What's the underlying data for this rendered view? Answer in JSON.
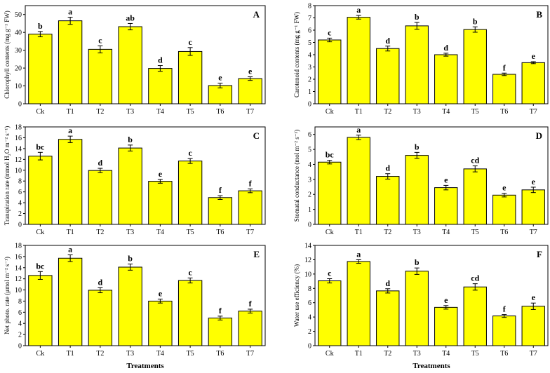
{
  "bar_color": "#FFFF00",
  "chart_data": [
    {
      "type": "bar",
      "panel_letter": "A",
      "categories": [
        "Ck",
        "T1",
        "T2",
        "T3",
        "T4",
        "T5",
        "T6",
        "T7"
      ],
      "values": [
        39,
        46.5,
        30.5,
        43.2,
        19.8,
        29.3,
        10.2,
        14.1
      ],
      "errors": [
        1.5,
        2.0,
        2.0,
        1.8,
        1.6,
        2.2,
        1.3,
        1.0
      ],
      "significance": [
        "b",
        "a",
        "c",
        "ab",
        "d",
        "c",
        "e",
        "e"
      ],
      "ylabel": "Chlorophyll contents (mg g⁻¹ FW)",
      "xlabel": "",
      "ylim": [
        0,
        55
      ],
      "yticks": [
        0,
        10,
        20,
        30,
        40,
        50
      ]
    },
    {
      "type": "bar",
      "panel_letter": "B",
      "categories": [
        "Ck",
        "T1",
        "T2",
        "T3",
        "T4",
        "T5",
        "T6",
        "T7"
      ],
      "values": [
        5.2,
        7.05,
        4.5,
        6.35,
        4.0,
        6.05,
        2.4,
        3.35
      ],
      "errors": [
        0.15,
        0.15,
        0.2,
        0.28,
        0.12,
        0.22,
        0.1,
        0.08
      ],
      "significance": [
        "c",
        "a",
        "d",
        "b",
        "d",
        "b",
        "f",
        "e"
      ],
      "ylabel": "Carotenoid contents (mg g⁻¹ FW)",
      "xlabel": "",
      "ylim": [
        0,
        8
      ],
      "yticks": [
        0,
        1,
        2,
        3,
        4,
        5,
        6,
        7,
        8
      ]
    },
    {
      "type": "bar",
      "panel_letter": "C",
      "categories": [
        "Ck",
        "T1",
        "T2",
        "T3",
        "T4",
        "T5",
        "T6",
        "T7"
      ],
      "values": [
        12.6,
        15.7,
        9.95,
        14.1,
        7.95,
        11.7,
        4.95,
        6.2
      ],
      "errors": [
        0.7,
        0.6,
        0.4,
        0.55,
        0.35,
        0.45,
        0.35,
        0.35
      ],
      "significance": [
        "bc",
        "a",
        "d",
        "b",
        "e",
        "c",
        "f",
        "f"
      ],
      "ylabel": "Transpiration rate (mmol H₂O m⁻² s⁻¹)",
      "xlabel": "",
      "ylim": [
        0,
        18
      ],
      "yticks": [
        0,
        2,
        4,
        6,
        8,
        10,
        12,
        14,
        16,
        18
      ]
    },
    {
      "type": "bar",
      "panel_letter": "D",
      "categories": [
        "Ck",
        "T1",
        "T2",
        "T3",
        "T4",
        "T5",
        "T6",
        "T7"
      ],
      "values": [
        4.15,
        5.8,
        3.2,
        4.6,
        2.45,
        3.7,
        1.95,
        2.3
      ],
      "errors": [
        0.12,
        0.15,
        0.18,
        0.2,
        0.15,
        0.2,
        0.12,
        0.18
      ],
      "significance": [
        "bc",
        "a",
        "d",
        "b",
        "e",
        "cd",
        "e",
        "e"
      ],
      "ylabel": "Stomatal conductance (mol m⁻² s⁻¹)",
      "xlabel": "",
      "ylim": [
        0,
        6.5
      ],
      "yticks": [
        0,
        1,
        2,
        3,
        4,
        5,
        6
      ]
    },
    {
      "type": "bar",
      "panel_letter": "E",
      "categories": [
        "Ck",
        "T1",
        "T2",
        "T3",
        "T4",
        "T5",
        "T6",
        "T7"
      ],
      "values": [
        12.6,
        15.7,
        9.95,
        14.1,
        8.0,
        11.7,
        4.95,
        6.2
      ],
      "errors": [
        0.7,
        0.6,
        0.45,
        0.55,
        0.35,
        0.45,
        0.35,
        0.35
      ],
      "significance": [
        "bc",
        "a",
        "d",
        "b",
        "e",
        "c",
        "f",
        "f"
      ],
      "ylabel": "Net photo. rate (μmol m⁻² s⁻¹)",
      "xlabel": "Treatments",
      "ylim": [
        0,
        18
      ],
      "yticks": [
        0,
        2,
        4,
        6,
        8,
        10,
        12,
        14,
        16,
        18
      ]
    },
    {
      "type": "bar",
      "panel_letter": "F",
      "categories": [
        "Ck",
        "T1",
        "T2",
        "T3",
        "T4",
        "T5",
        "T6",
        "T7"
      ],
      "values": [
        9.05,
        11.75,
        7.65,
        10.4,
        5.35,
        8.2,
        4.15,
        5.5
      ],
      "errors": [
        0.3,
        0.25,
        0.3,
        0.45,
        0.25,
        0.45,
        0.2,
        0.45
      ],
      "significance": [
        "c",
        "a",
        "d",
        "b",
        "e",
        "cd",
        "f",
        "e"
      ],
      "ylabel": "Water use efficiency (%)",
      "xlabel": "Treatments",
      "ylim": [
        0,
        14
      ],
      "yticks": [
        0,
        2,
        4,
        6,
        8,
        10,
        12,
        14
      ]
    }
  ]
}
